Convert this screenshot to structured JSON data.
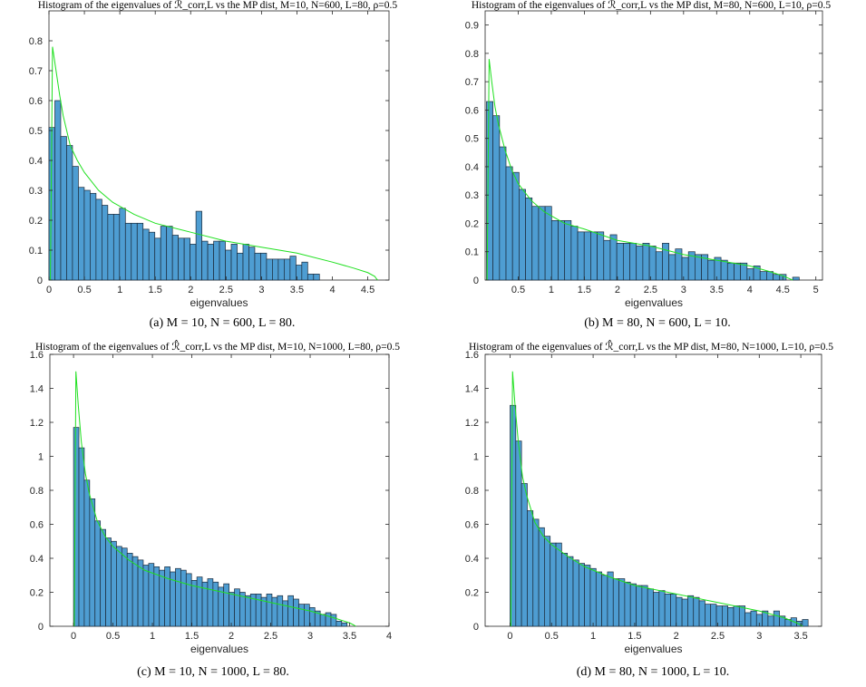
{
  "captions": [
    "(a) M = 10, N = 600, L = 80.",
    "(b) M = 80, N = 600, L = 10.",
    "(c) M = 10, N = 1000, L = 80.",
    "(d) M = 80, N = 1000, L = 10."
  ],
  "colors": {
    "bar_fill": "#4e9dd2",
    "bar_edge": "#1b2a3a",
    "mp_curve": "#1fe01f",
    "axis": "#262626"
  },
  "chart_data": [
    {
      "type": "bar",
      "title": "Histogram of the eigenvalues of ℛ_corr,L vs the MP dist, M=10, N=600, L=80, ρ=0.5",
      "xlabel": "eigenvalues",
      "ylabel": "",
      "xlim": [
        0,
        4.8
      ],
      "ylim": [
        0,
        0.9
      ],
      "xticks": [
        "0",
        "0.5",
        "1",
        "1.5",
        "2",
        "2.5",
        "3",
        "3.5",
        "4",
        "4.5"
      ],
      "yticks": [
        "0",
        "0.1",
        "0.2",
        "0.3",
        "0.4",
        "0.5",
        "0.6",
        "0.7",
        "0.8"
      ],
      "bin_start": 0.0,
      "bin_width": 0.083,
      "values": [
        0.51,
        0.6,
        0.48,
        0.45,
        0.38,
        0.31,
        0.3,
        0.29,
        0.27,
        0.25,
        0.22,
        0.22,
        0.24,
        0.19,
        0.19,
        0.19,
        0.17,
        0.16,
        0.14,
        0.18,
        0.18,
        0.15,
        0.14,
        0.14,
        0.12,
        0.23,
        0.13,
        0.12,
        0.13,
        0.13,
        0.1,
        0.12,
        0.09,
        0.12,
        0.11,
        0.09,
        0.09,
        0.07,
        0.07,
        0.07,
        0.07,
        0.08,
        0.05,
        0.06,
        0.02,
        0.02
      ],
      "series": [
        {
          "type": "line",
          "x": [
            0.02,
            0.05,
            0.1,
            0.15,
            0.2,
            0.3,
            0.4,
            0.5,
            0.7,
            0.9,
            1.2,
            1.5,
            2,
            2.5,
            3,
            3.5,
            4,
            4.3,
            4.5,
            4.6,
            4.62,
            4.64
          ],
          "y": [
            0.0,
            0.78,
            0.7,
            0.62,
            0.55,
            0.45,
            0.4,
            0.36,
            0.3,
            0.26,
            0.22,
            0.19,
            0.16,
            0.13,
            0.11,
            0.09,
            0.06,
            0.04,
            0.025,
            0.012,
            0.005,
            0.0
          ]
        }
      ]
    },
    {
      "type": "bar",
      "title": "Histogram of the eigenvalues of ℛ_corr,L vs the MP dist, M=80, N=600, L=10, ρ=0.5",
      "xlabel": "eigenvalues",
      "ylabel": "",
      "xlim": [
        0,
        5.1
      ],
      "ylim": [
        0,
        0.95
      ],
      "xticks": [
        "0.5",
        "1",
        "1.5",
        "2",
        "2.5",
        "3",
        "3.5",
        "4",
        "4.5",
        "5"
      ],
      "yticks": [
        "0",
        "0.1",
        "0.2",
        "0.3",
        "0.4",
        "0.5",
        "0.6",
        "0.7",
        "0.8",
        "0.9"
      ],
      "bin_start": 0.02,
      "bin_width": 0.0985,
      "values": [
        0.63,
        0.58,
        0.47,
        0.4,
        0.38,
        0.32,
        0.29,
        0.26,
        0.26,
        0.26,
        0.21,
        0.21,
        0.21,
        0.19,
        0.17,
        0.17,
        0.17,
        0.17,
        0.14,
        0.16,
        0.13,
        0.13,
        0.13,
        0.12,
        0.13,
        0.12,
        0.1,
        0.13,
        0.09,
        0.11,
        0.08,
        0.1,
        0.09,
        0.09,
        0.07,
        0.08,
        0.07,
        0.06,
        0.06,
        0.06,
        0.04,
        0.05,
        0.03,
        0.03,
        0.02,
        0.02,
        0.0,
        0.01
      ],
      "series": [
        {
          "type": "line",
          "x": [
            0.03,
            0.06,
            0.1,
            0.15,
            0.2,
            0.3,
            0.4,
            0.5,
            0.7,
            0.9,
            1.2,
            1.5,
            2,
            2.5,
            3,
            3.5,
            4,
            4.3,
            4.5,
            4.6,
            4.65
          ],
          "y": [
            0.0,
            0.78,
            0.7,
            0.61,
            0.55,
            0.46,
            0.39,
            0.34,
            0.28,
            0.24,
            0.2,
            0.18,
            0.14,
            0.12,
            0.09,
            0.07,
            0.05,
            0.03,
            0.015,
            0.005,
            0.0
          ]
        }
      ]
    },
    {
      "type": "bar",
      "title": "Histogram of the eigenvalues of ℛ̂_corr,L vs the MP dist, M=10, N=1000, L=80, ρ=0.5",
      "xlabel": "eigenvalues",
      "ylabel": "",
      "xlim": [
        -0.3,
        4.0
      ],
      "ylim": [
        0,
        1.6
      ],
      "xticks": [
        "0",
        "0.5",
        "1",
        "1.5",
        "2",
        "2.5",
        "3",
        "3.5",
        "4"
      ],
      "yticks": [
        "0",
        "0.2",
        "0.4",
        "0.6",
        "0.8",
        "1",
        "1.2",
        "1.4",
        "1.6"
      ],
      "bin_start": 0.0,
      "bin_width": 0.068,
      "values": [
        1.17,
        1.05,
        0.86,
        0.75,
        0.62,
        0.57,
        0.52,
        0.5,
        0.47,
        0.46,
        0.43,
        0.41,
        0.39,
        0.36,
        0.37,
        0.35,
        0.33,
        0.35,
        0.32,
        0.34,
        0.33,
        0.31,
        0.27,
        0.29,
        0.26,
        0.28,
        0.26,
        0.23,
        0.25,
        0.2,
        0.22,
        0.2,
        0.18,
        0.19,
        0.19,
        0.17,
        0.19,
        0.17,
        0.18,
        0.15,
        0.18,
        0.16,
        0.13,
        0.13,
        0.11,
        0.09,
        0.07,
        0.08,
        0.07,
        0.03,
        0.02
      ],
      "series": [
        {
          "type": "line",
          "x": [
            0.01,
            0.03,
            0.06,
            0.1,
            0.15,
            0.2,
            0.3,
            0.4,
            0.5,
            0.7,
            0.9,
            1.2,
            1.5,
            2,
            2.5,
            3,
            3.3,
            3.5,
            3.55,
            3.58
          ],
          "y": [
            0.0,
            1.5,
            1.3,
            1.08,
            0.9,
            0.78,
            0.62,
            0.53,
            0.47,
            0.39,
            0.33,
            0.28,
            0.24,
            0.19,
            0.14,
            0.09,
            0.05,
            0.02,
            0.008,
            0.0
          ]
        }
      ]
    },
    {
      "type": "bar",
      "title": "Histogram of the eigenvalues of ℛ̂_corr,L vs the MP dist, M=80, N=1000, L=10, ρ=0.5",
      "xlabel": "eigenvalues",
      "ylabel": "",
      "xlim": [
        -0.3,
        3.75
      ],
      "ylim": [
        0,
        1.6
      ],
      "xticks": [
        "0",
        "0.5",
        "1",
        "1.5",
        "2",
        "2.5",
        "3",
        "3.5"
      ],
      "yticks": [
        "0",
        "0.2",
        "0.4",
        "0.6",
        "0.8",
        "1",
        "1.2",
        "1.4",
        "1.6"
      ],
      "bin_start": 0.0,
      "bin_width": 0.069,
      "values": [
        1.3,
        1.09,
        0.84,
        0.68,
        0.63,
        0.58,
        0.53,
        0.49,
        0.49,
        0.43,
        0.41,
        0.39,
        0.37,
        0.36,
        0.34,
        0.32,
        0.3,
        0.32,
        0.28,
        0.28,
        0.26,
        0.25,
        0.24,
        0.24,
        0.22,
        0.2,
        0.21,
        0.19,
        0.19,
        0.17,
        0.16,
        0.18,
        0.17,
        0.15,
        0.13,
        0.13,
        0.12,
        0.12,
        0.11,
        0.12,
        0.12,
        0.08,
        0.09,
        0.07,
        0.09,
        0.06,
        0.09,
        0.06,
        0.04,
        0.05,
        0.03,
        0.04
      ],
      "series": [
        {
          "type": "line",
          "x": [
            0.01,
            0.03,
            0.06,
            0.1,
            0.15,
            0.2,
            0.3,
            0.4,
            0.5,
            0.7,
            0.9,
            1.2,
            1.5,
            2,
            2.5,
            3,
            3.3,
            3.45,
            3.5,
            3.52
          ],
          "y": [
            0.0,
            1.5,
            1.3,
            1.08,
            0.88,
            0.77,
            0.61,
            0.53,
            0.48,
            0.41,
            0.35,
            0.29,
            0.24,
            0.19,
            0.14,
            0.09,
            0.05,
            0.02,
            0.008,
            0.0
          ]
        }
      ]
    }
  ]
}
